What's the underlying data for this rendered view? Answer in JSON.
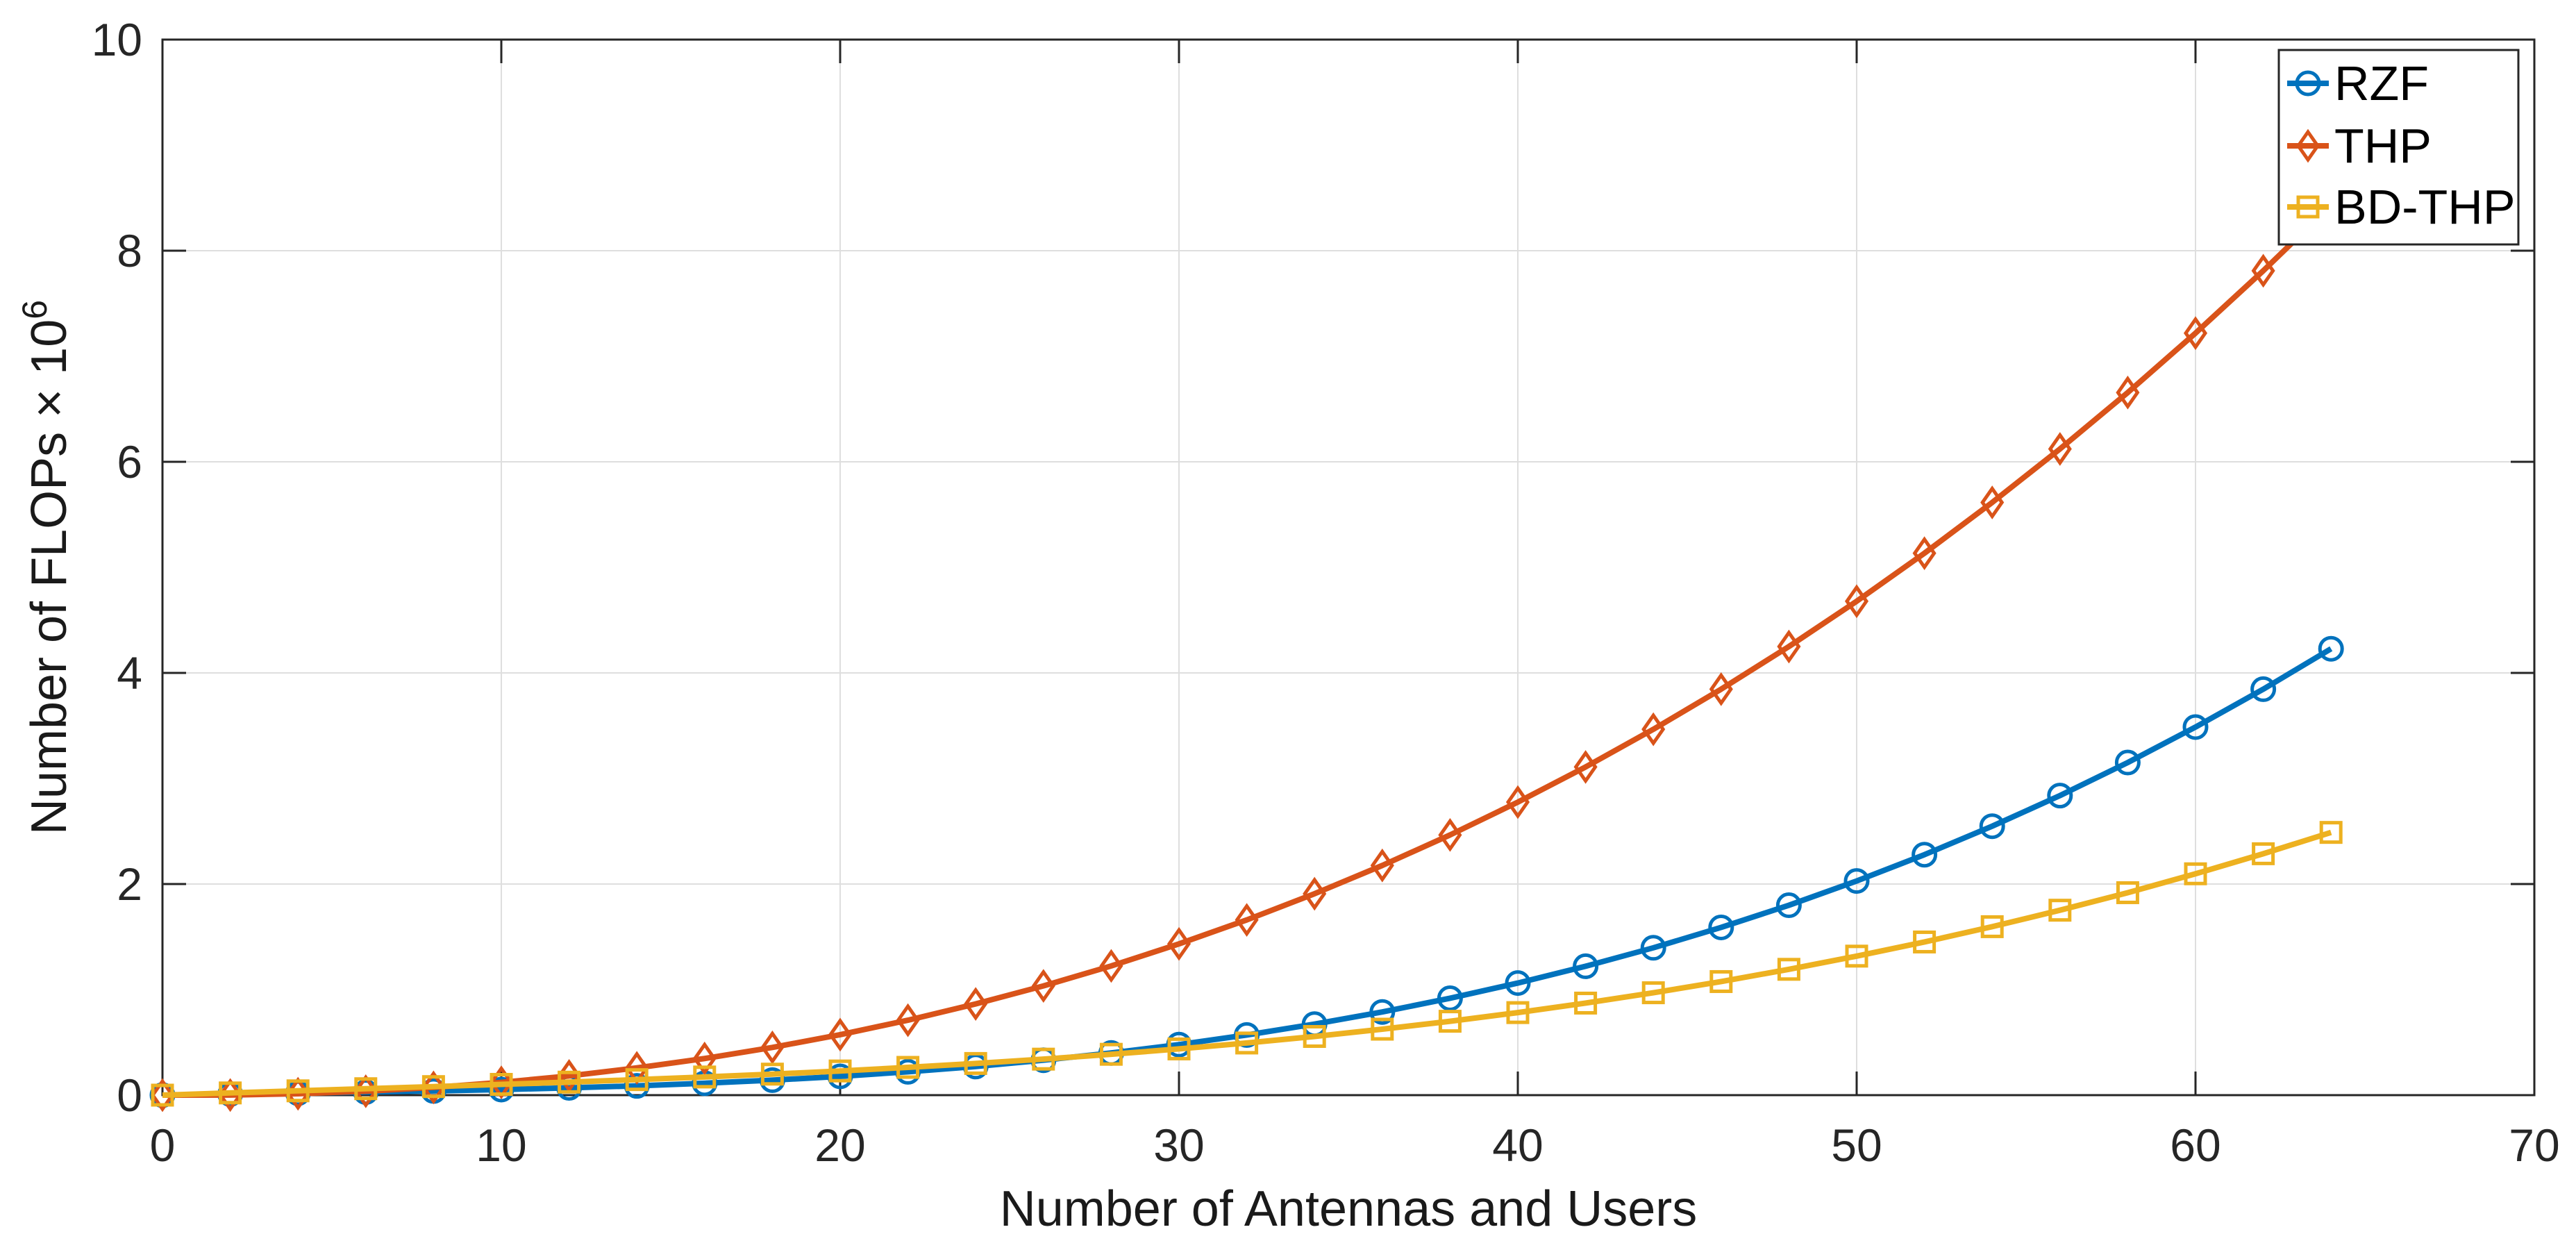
{
  "figure": {
    "background": "#ffffff",
    "axes_color": "#262626",
    "grid_color": "#dedede",
    "legend": {
      "position": "northeast",
      "border_color": "#262626",
      "background": "#ffffff",
      "entries": [
        {
          "label": "RZF",
          "color": "#0072BD",
          "marker": "circle-icon"
        },
        {
          "label": "THP",
          "color": "#D95319",
          "marker": "diamond-icon"
        },
        {
          "label": "BD-THP",
          "color": "#EDB120",
          "marker": "square-icon"
        }
      ]
    }
  },
  "chart_data": {
    "type": "line",
    "title": "",
    "xlabel": "Number of Antennas and Users",
    "ylabel_prefix": "Number of FLOPs × 10",
    "ylabel_exponent": "6",
    "xlim": [
      0,
      70
    ],
    "ylim": [
      0,
      10
    ],
    "xticks": [
      0,
      10,
      20,
      30,
      40,
      50,
      60,
      70
    ],
    "yticks": [
      0,
      2,
      4,
      6,
      8,
      10
    ],
    "grid": true,
    "x": [
      0,
      2,
      4,
      6,
      8,
      10,
      12,
      14,
      16,
      18,
      20,
      22,
      24,
      26,
      28,
      30,
      32,
      34,
      36,
      38,
      40,
      42,
      44,
      46,
      48,
      50,
      52,
      54,
      56,
      58,
      60,
      62,
      64
    ],
    "series": [
      {
        "name": "RZF",
        "color": "#0072BD",
        "marker": "circle",
        "values": [
          0,
          0.01,
          0.019,
          0.029,
          0.04,
          0.053,
          0.069,
          0.088,
          0.113,
          0.142,
          0.178,
          0.221,
          0.271,
          0.331,
          0.4,
          0.479,
          0.57,
          0.673,
          0.788,
          0.918,
          1.062,
          1.221,
          1.396,
          1.589,
          1.799,
          2.029,
          2.278,
          2.548,
          2.838,
          3.151,
          3.487,
          3.846,
          4.229
        ]
      },
      {
        "name": "THP",
        "color": "#D95319",
        "marker": "diamond",
        "values": [
          0,
          0.001,
          0.013,
          0.037,
          0.073,
          0.121,
          0.182,
          0.258,
          0.347,
          0.452,
          0.573,
          0.71,
          0.864,
          1.035,
          1.224,
          1.433,
          1.66,
          1.908,
          2.176,
          2.465,
          2.776,
          3.109,
          3.466,
          3.846,
          4.25,
          4.679,
          5.134,
          5.615,
          6.122,
          6.656,
          7.219,
          7.81,
          8.43
        ]
      },
      {
        "name": "BD-THP",
        "color": "#EDB120",
        "marker": "square",
        "values": [
          0,
          0.021,
          0.041,
          0.061,
          0.081,
          0.102,
          0.123,
          0.147,
          0.172,
          0.199,
          0.229,
          0.263,
          0.3,
          0.341,
          0.387,
          0.438,
          0.494,
          0.556,
          0.625,
          0.7,
          0.782,
          0.872,
          0.97,
          1.076,
          1.192,
          1.317,
          1.451,
          1.596,
          1.752,
          1.918,
          2.097,
          2.287,
          2.489
        ]
      }
    ]
  }
}
